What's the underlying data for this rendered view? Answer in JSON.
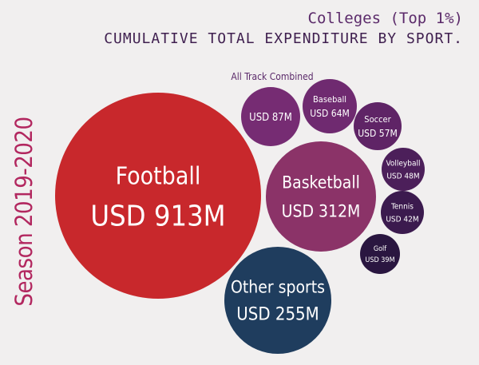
{
  "title_line1": "Colleges (Top 1%)",
  "title_line2": "CUMULATIVE TOTAL EXPENDITURE BY SPORT.",
  "side_label": "Season 2019-2020",
  "chart_data": {
    "type": "bubble",
    "unit": "USD M",
    "items": [
      {
        "name": "Football",
        "label": "Football",
        "value_label": "USD 913M",
        "value": 913,
        "color": "#c8282c"
      },
      {
        "name": "Basketball",
        "label": "Basketball",
        "value_label": "USD 312M",
        "value": 312,
        "color": "#8b3368"
      },
      {
        "name": "Other sports",
        "label": "Other sports",
        "value_label": "USD 255M",
        "value": 255,
        "color": "#1f3d5e"
      },
      {
        "name": "All Track Combined",
        "label": "All Track Combined",
        "value_label": "USD 87M",
        "value": 87,
        "color": "#762c73"
      },
      {
        "name": "Baseball",
        "label": "Baseball",
        "value_label": "USD 64M",
        "value": 64,
        "color": "#6f2a70"
      },
      {
        "name": "Soccer",
        "label": "Soccer",
        "value_label": "USD 57M",
        "value": 57,
        "color": "#5f2466"
      },
      {
        "name": "Volleyball",
        "label": "Volleyball",
        "value_label": "USD 48M",
        "value": 48,
        "color": "#4c1f5a"
      },
      {
        "name": "Tennis",
        "label": "Tennis",
        "value_label": "USD 42M",
        "value": 42,
        "color": "#3b1a4e"
      },
      {
        "name": "Golf",
        "label": "Golf",
        "value_label": "USD 39M",
        "value": 39,
        "color": "#2a1640"
      }
    ]
  }
}
